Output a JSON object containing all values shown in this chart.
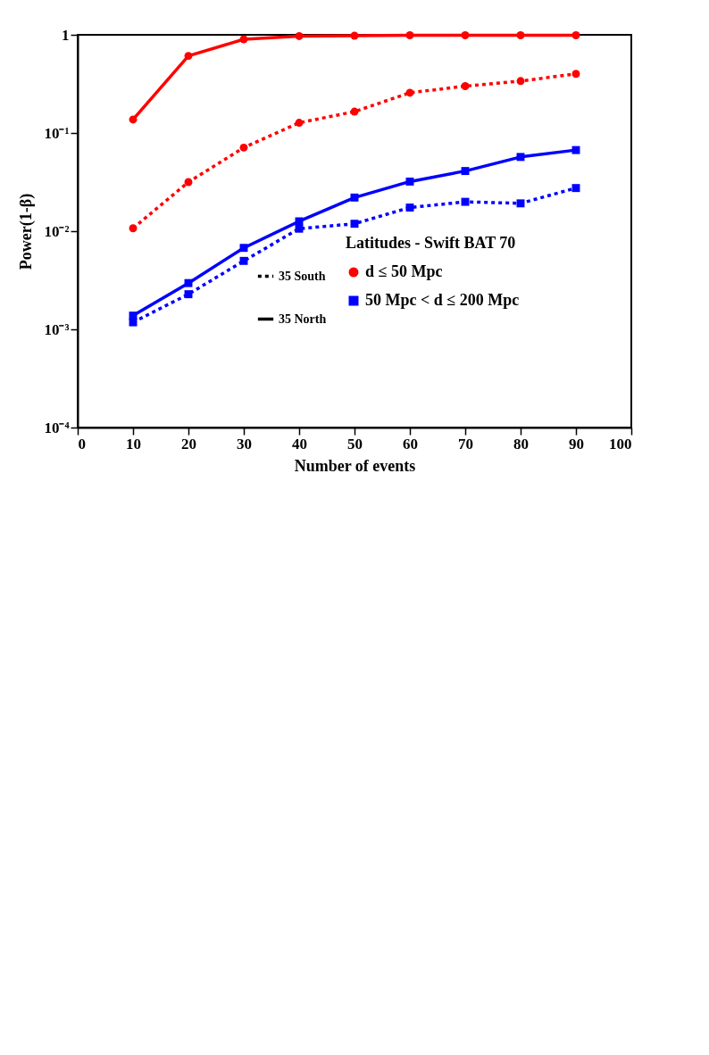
{
  "chart_data": {
    "type": "line",
    "xlabel": "Number of events",
    "ylabel": "Power(1-β)",
    "x": [
      10,
      20,
      30,
      40,
      50,
      60,
      70,
      80,
      90
    ],
    "xlim": [
      0,
      100
    ],
    "xticks": [
      0,
      10,
      20,
      30,
      40,
      50,
      60,
      70,
      80,
      90,
      100
    ],
    "ylim": [
      0.0001,
      1
    ],
    "yticks": [
      {
        "value": 0.0001,
        "label": "10⁻⁴"
      },
      {
        "value": 0.001,
        "label": "10⁻³"
      },
      {
        "value": 0.01,
        "label": "10⁻²"
      },
      {
        "value": 0.1,
        "label": "10⁻¹"
      },
      1
    ],
    "log": "y",
    "grid": false,
    "legend": "bottom right",
    "legend_title": "Latitudes - Swift BAT 70",
    "annotations": [
      "35 South",
      "35 North"
    ],
    "series": [
      {
        "name": "d ≤ 50 Mpc",
        "color": "#ff0000",
        "marker": "circle",
        "line_style": "solid",
        "values": [
          0.137,
          0.61,
          0.9,
          0.97,
          0.98,
          0.99,
          0.99,
          0.99,
          0.99
        ]
      },
      {
        "color": "#ff0000",
        "marker": "circle",
        "line_style": "dotted",
        "values": [
          0.0107,
          0.0316,
          0.071,
          0.127,
          0.165,
          0.257,
          0.3,
          0.338,
          0.4
        ]
      },
      {
        "name": "50 Mpc < d ≤ 200 Mpc",
        "color": "#0000ff",
        "marker": "square",
        "line_style": "solid",
        "values": [
          0.00138,
          0.00296,
          0.00676,
          0.0126,
          0.022,
          0.032,
          0.041,
          0.057,
          0.067
        ]
      },
      {
        "color": "#0000ff",
        "marker": "square",
        "line_style": "dotted",
        "values": [
          0.00118,
          0.00228,
          0.00498,
          0.0106,
          0.0119,
          0.0174,
          0.0199,
          0.0192,
          0.0275
        ]
      }
    ]
  }
}
